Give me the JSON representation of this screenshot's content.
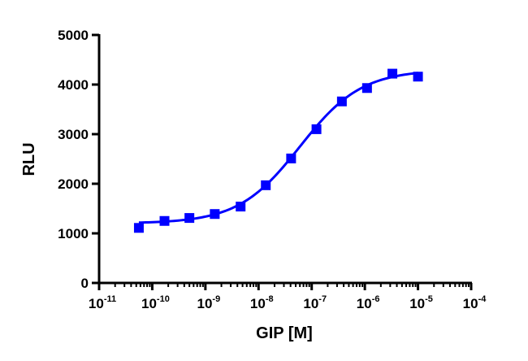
{
  "chart_data": {
    "type": "scatter",
    "title": "",
    "xlabel": "GIP [M]",
    "ylabel": "RLU",
    "x_scale": "log",
    "xlim": [
      1e-11,
      0.0001
    ],
    "ylim": [
      0,
      5000
    ],
    "x_tick_labels": [
      {
        "base": "10",
        "exp": "-11"
      },
      {
        "base": "10",
        "exp": "-10"
      },
      {
        "base": "10",
        "exp": "-9"
      },
      {
        "base": "10",
        "exp": "-8"
      },
      {
        "base": "10",
        "exp": "-7"
      },
      {
        "base": "10",
        "exp": "-6"
      },
      {
        "base": "10",
        "exp": "-5"
      },
      {
        "base": "10",
        "exp": "-4"
      }
    ],
    "y_tick_labels": [
      "0",
      "1000",
      "2000",
      "3000",
      "4000",
      "5000"
    ],
    "grid": false,
    "series": [
      {
        "color": "#0000ff",
        "marker": "square",
        "x": [
          5.6e-11,
          1.7e-10,
          5e-10,
          1.5e-09,
          4.6e-09,
          1.37e-08,
          4.1e-08,
          1.23e-07,
          3.7e-07,
          1.1e-06,
          3.3e-06,
          1e-05
        ],
        "y": [
          1110,
          1250,
          1310,
          1390,
          1540,
          1970,
          2510,
          3100,
          3660,
          3930,
          4220,
          4160
        ]
      }
    ],
    "fit_curve": {
      "model": "four-parameter-logistic",
      "color": "#0000ff",
      "bottom": 1200,
      "top": 4300,
      "ec50": 6e-08,
      "hill_slope": 0.75,
      "x_range": [
        5.6e-11,
        1e-05
      ]
    }
  }
}
